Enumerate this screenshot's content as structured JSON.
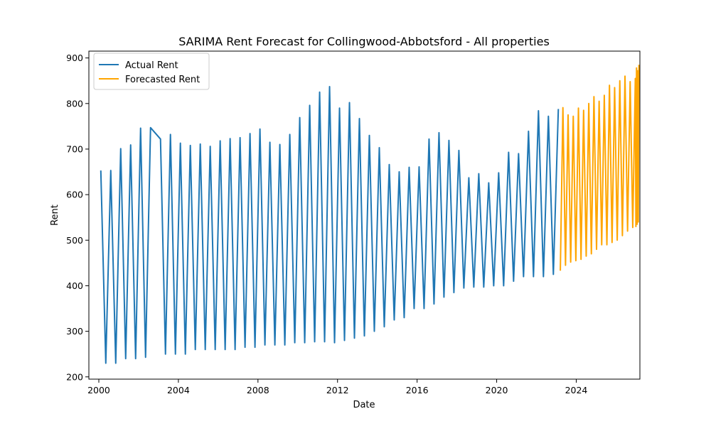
{
  "chart_data": {
    "type": "line",
    "title": "SARIMA Rent Forecast for Collingwood-Abbotsford - All properties",
    "xlabel": "Date",
    "ylabel": "Rent",
    "xlim": [
      1999.5,
      2027.2
    ],
    "ylim": [
      195,
      915
    ],
    "xticks": [
      2000,
      2004,
      2008,
      2012,
      2016,
      2020,
      2024
    ],
    "yticks": [
      200,
      300,
      400,
      500,
      600,
      700,
      800,
      900
    ],
    "grid": false,
    "legend": {
      "position": "top-left"
    },
    "series": [
      {
        "name": "Actual Rent",
        "color": "#1f77b4",
        "points": [
          [
            2000.1,
            653
          ],
          [
            2000.35,
            230
          ],
          [
            2000.6,
            653
          ],
          [
            2000.85,
            230
          ],
          [
            2001.1,
            701
          ],
          [
            2001.35,
            240
          ],
          [
            2001.6,
            709
          ],
          [
            2001.85,
            240
          ],
          [
            2002.1,
            746
          ],
          [
            2002.35,
            243
          ],
          [
            2002.6,
            747
          ],
          [
            2003.1,
            722
          ],
          [
            2003.35,
            250
          ],
          [
            2003.6,
            732
          ],
          [
            2003.85,
            250
          ],
          [
            2004.1,
            713
          ],
          [
            2004.35,
            250
          ],
          [
            2004.6,
            708
          ],
          [
            2004.85,
            260
          ],
          [
            2005.1,
            711
          ],
          [
            2005.35,
            260
          ],
          [
            2005.6,
            706
          ],
          [
            2005.85,
            260
          ],
          [
            2006.1,
            718
          ],
          [
            2006.35,
            260
          ],
          [
            2006.6,
            723
          ],
          [
            2006.85,
            260
          ],
          [
            2007.1,
            725
          ],
          [
            2007.35,
            265
          ],
          [
            2007.6,
            734
          ],
          [
            2007.85,
            265
          ],
          [
            2008.1,
            744
          ],
          [
            2008.35,
            270
          ],
          [
            2008.6,
            715
          ],
          [
            2008.85,
            270
          ],
          [
            2009.1,
            710
          ],
          [
            2009.35,
            270
          ],
          [
            2009.6,
            732
          ],
          [
            2009.85,
            275
          ],
          [
            2010.1,
            769
          ],
          [
            2010.35,
            275
          ],
          [
            2010.6,
            796
          ],
          [
            2010.85,
            277
          ],
          [
            2011.1,
            825
          ],
          [
            2011.35,
            277
          ],
          [
            2011.6,
            837
          ],
          [
            2011.85,
            275
          ],
          [
            2012.1,
            790
          ],
          [
            2012.35,
            280
          ],
          [
            2012.6,
            802
          ],
          [
            2012.85,
            285
          ],
          [
            2013.1,
            767
          ],
          [
            2013.35,
            290
          ],
          [
            2013.6,
            730
          ],
          [
            2013.85,
            300
          ],
          [
            2014.1,
            703
          ],
          [
            2014.35,
            310
          ],
          [
            2014.6,
            666
          ],
          [
            2014.85,
            325
          ],
          [
            2015.1,
            650
          ],
          [
            2015.35,
            330
          ],
          [
            2015.6,
            660
          ],
          [
            2015.85,
            350
          ],
          [
            2016.1,
            661
          ],
          [
            2016.35,
            350
          ],
          [
            2016.6,
            722
          ],
          [
            2016.85,
            360
          ],
          [
            2017.1,
            736
          ],
          [
            2017.35,
            375
          ],
          [
            2017.6,
            719
          ],
          [
            2017.85,
            385
          ],
          [
            2018.1,
            697
          ],
          [
            2018.35,
            395
          ],
          [
            2018.6,
            637
          ],
          [
            2018.85,
            397
          ],
          [
            2019.1,
            646
          ],
          [
            2019.35,
            397
          ],
          [
            2019.6,
            626
          ],
          [
            2019.85,
            400
          ],
          [
            2020.1,
            648
          ],
          [
            2020.35,
            400
          ],
          [
            2020.6,
            693
          ],
          [
            2020.85,
            410
          ],
          [
            2021.1,
            690
          ],
          [
            2021.35,
            420
          ],
          [
            2021.6,
            739
          ],
          [
            2021.85,
            420
          ],
          [
            2022.1,
            784
          ],
          [
            2022.35,
            420
          ],
          [
            2022.6,
            772
          ],
          [
            2022.85,
            425
          ],
          [
            2023.1,
            788
          ]
        ]
      },
      {
        "name": "Forecasted Rent",
        "color": "#ffa500",
        "points": [
          [
            2023.2,
            433
          ],
          [
            2023.33,
            791
          ],
          [
            2023.46,
            445
          ],
          [
            2023.59,
            775
          ],
          [
            2023.72,
            452
          ],
          [
            2023.85,
            772
          ],
          [
            2023.98,
            455
          ],
          [
            2024.11,
            790
          ],
          [
            2024.24,
            458
          ],
          [
            2024.37,
            785
          ],
          [
            2024.5,
            465
          ],
          [
            2024.63,
            800
          ],
          [
            2024.76,
            470
          ],
          [
            2024.89,
            815
          ],
          [
            2025.02,
            480
          ],
          [
            2025.15,
            805
          ],
          [
            2025.28,
            490
          ],
          [
            2025.41,
            818
          ],
          [
            2025.54,
            490
          ],
          [
            2025.67,
            840
          ],
          [
            2025.8,
            495
          ],
          [
            2025.93,
            835
          ],
          [
            2026.06,
            500
          ],
          [
            2026.19,
            850
          ],
          [
            2026.32,
            510
          ],
          [
            2026.45,
            860
          ],
          [
            2026.58,
            520
          ],
          [
            2026.71,
            848
          ],
          [
            2026.84,
            528
          ],
          [
            2026.97,
            855
          ],
          [
            2027.0,
            530
          ],
          [
            2027.03,
            878
          ],
          [
            2027.06,
            535
          ],
          [
            2027.09,
            872
          ],
          [
            2027.12,
            540
          ],
          [
            2027.15,
            885
          ]
        ]
      }
    ]
  }
}
